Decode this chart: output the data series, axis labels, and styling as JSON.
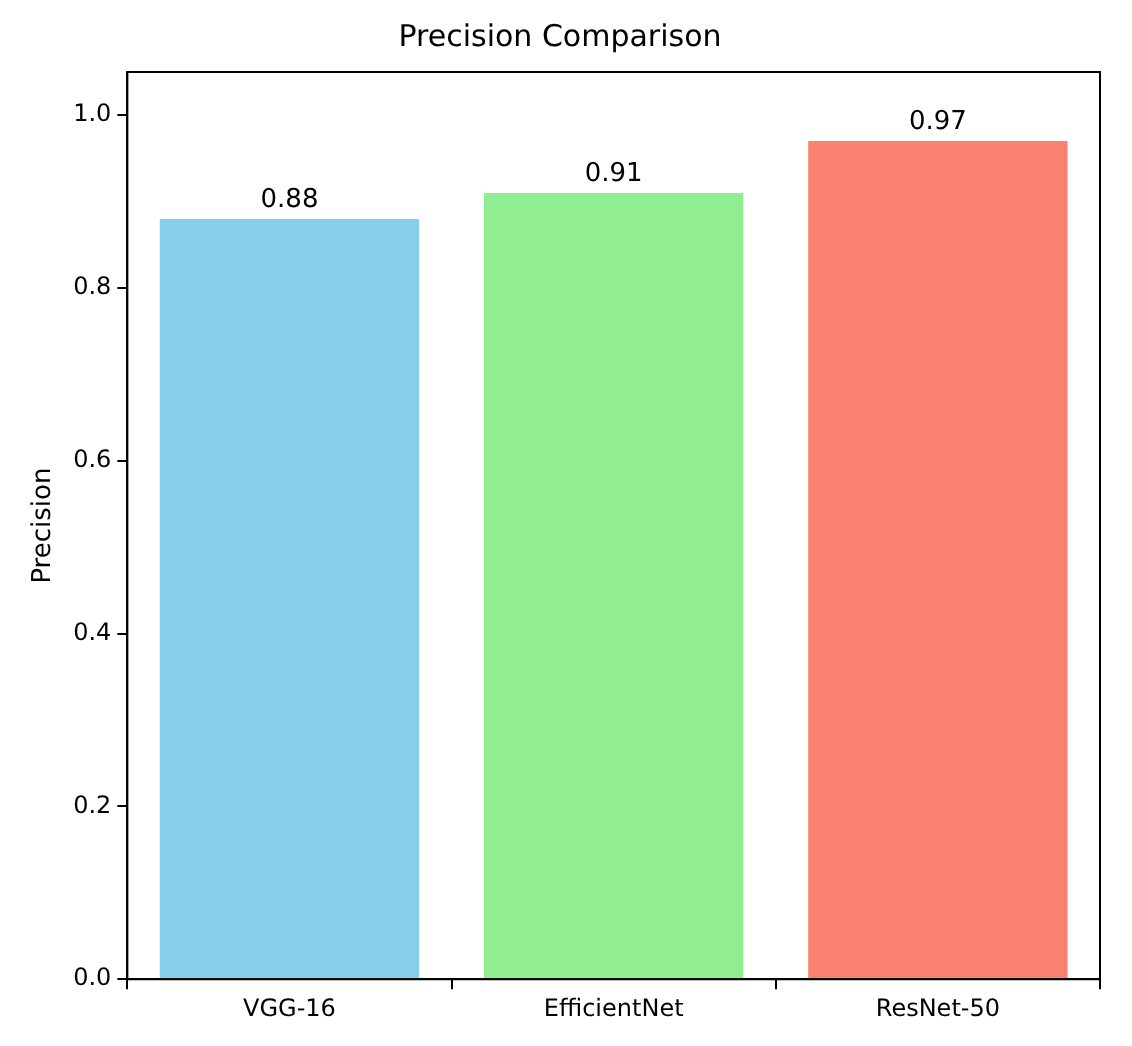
{
  "chart_data": {
    "type": "bar",
    "title": "Precision Comparison",
    "ylabel": "Precision",
    "categories": [
      "VGG-16",
      "EfficientNet",
      "ResNet-50"
    ],
    "values": [
      0.88,
      0.91,
      0.97
    ],
    "colors": [
      "#87ceeb",
      "#90ee90",
      "#fa8072"
    ],
    "ylim": [
      0,
      1.05
    ],
    "yticks": [
      {
        "value": 0,
        "label": "0.0"
      },
      {
        "value": 0.2,
        "label": "0.2"
      },
      {
        "value": 0.4,
        "label": "0.4"
      },
      {
        "value": 0.6,
        "label": "0.6"
      },
      {
        "value": 0.8,
        "label": "0.8"
      },
      {
        "value": 1,
        "label": "1.0"
      }
    ],
    "data_labels": true,
    "grid": false,
    "legend": false
  }
}
